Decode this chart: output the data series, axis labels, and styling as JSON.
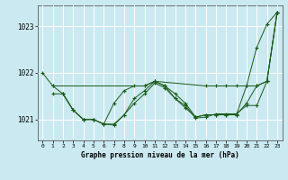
{
  "background_color": "#cbe9f0",
  "grid_color": "#ffffff",
  "line_color": "#1a5c1a",
  "title": "Graphe pression niveau de la mer (hPa)",
  "xlim": [
    -0.5,
    23.5
  ],
  "ylim": [
    1020.55,
    1023.45
  ],
  "yticks": [
    1021,
    1022,
    1023
  ],
  "xticks": [
    0,
    1,
    2,
    3,
    4,
    5,
    6,
    7,
    8,
    9,
    10,
    11,
    12,
    13,
    14,
    15,
    16,
    17,
    18,
    19,
    20,
    21,
    22,
    23
  ],
  "series": [
    {
      "x": [
        0,
        1,
        10,
        11,
        16,
        17,
        18,
        19,
        20,
        21,
        22,
        23
      ],
      "y": [
        1022.0,
        1021.72,
        1021.72,
        1021.82,
        1021.72,
        1021.72,
        1021.72,
        1021.72,
        1021.72,
        1022.55,
        1023.05,
        1023.3
      ]
    },
    {
      "x": [
        1,
        2,
        3,
        4,
        5,
        6,
        7,
        8,
        9,
        10,
        11,
        12,
        13,
        14,
        15,
        16,
        17,
        18,
        19,
        20,
        21,
        22,
        23
      ],
      "y": [
        1021.72,
        1021.55,
        1021.2,
        1021.0,
        1021.0,
        1020.9,
        1021.35,
        1021.62,
        1021.72,
        1021.72,
        1021.82,
        1021.72,
        1021.55,
        1021.35,
        1021.05,
        1021.1,
        1021.1,
        1021.1,
        1021.1,
        1021.72,
        1021.72,
        1021.82,
        1023.3
      ]
    },
    {
      "x": [
        1,
        2,
        3,
        4,
        5,
        6,
        7,
        8,
        9,
        10,
        11,
        12,
        13,
        14,
        15,
        16,
        17,
        18,
        19,
        20,
        21,
        22,
        23
      ],
      "y": [
        1021.55,
        1021.55,
        1021.2,
        1021.0,
        1021.0,
        1020.9,
        1020.9,
        1021.1,
        1021.45,
        1021.62,
        1021.82,
        1021.72,
        1021.45,
        1021.25,
        1021.05,
        1021.1,
        1021.1,
        1021.1,
        1021.1,
        1021.35,
        1021.72,
        1021.82,
        1023.3
      ]
    },
    {
      "x": [
        2,
        3,
        4,
        5,
        6,
        7,
        8,
        9,
        10,
        11,
        12,
        13,
        14,
        15,
        16,
        17,
        18,
        19,
        20,
        21,
        22,
        23
      ],
      "y": [
        1021.55,
        1021.2,
        1021.0,
        1021.0,
        1020.9,
        1020.88,
        1021.1,
        1021.35,
        1021.55,
        1021.78,
        1021.68,
        1021.45,
        1021.3,
        1021.03,
        1021.05,
        1021.12,
        1021.12,
        1021.12,
        1021.3,
        1021.3,
        1021.82,
        1023.3
      ]
    }
  ]
}
